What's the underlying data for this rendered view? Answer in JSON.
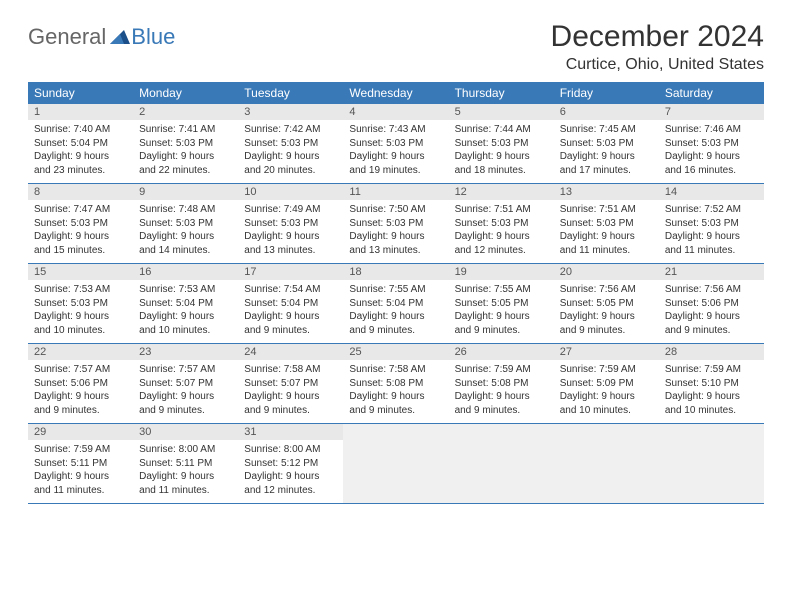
{
  "logo": {
    "part1": "General",
    "part2": "Blue"
  },
  "title": "December 2024",
  "location": "Curtice, Ohio, United States",
  "header_bg": "#3a79b7",
  "daynum_bg": "#e8e8e8",
  "border_color": "#3a79b7",
  "day_names": [
    "Sunday",
    "Monday",
    "Tuesday",
    "Wednesday",
    "Thursday",
    "Friday",
    "Saturday"
  ],
  "weeks": [
    [
      {
        "n": "1",
        "sunrise": "7:40 AM",
        "sunset": "5:04 PM",
        "daylight": "9 hours and 23 minutes."
      },
      {
        "n": "2",
        "sunrise": "7:41 AM",
        "sunset": "5:03 PM",
        "daylight": "9 hours and 22 minutes."
      },
      {
        "n": "3",
        "sunrise": "7:42 AM",
        "sunset": "5:03 PM",
        "daylight": "9 hours and 20 minutes."
      },
      {
        "n": "4",
        "sunrise": "7:43 AM",
        "sunset": "5:03 PM",
        "daylight": "9 hours and 19 minutes."
      },
      {
        "n": "5",
        "sunrise": "7:44 AM",
        "sunset": "5:03 PM",
        "daylight": "9 hours and 18 minutes."
      },
      {
        "n": "6",
        "sunrise": "7:45 AM",
        "sunset": "5:03 PM",
        "daylight": "9 hours and 17 minutes."
      },
      {
        "n": "7",
        "sunrise": "7:46 AM",
        "sunset": "5:03 PM",
        "daylight": "9 hours and 16 minutes."
      }
    ],
    [
      {
        "n": "8",
        "sunrise": "7:47 AM",
        "sunset": "5:03 PM",
        "daylight": "9 hours and 15 minutes."
      },
      {
        "n": "9",
        "sunrise": "7:48 AM",
        "sunset": "5:03 PM",
        "daylight": "9 hours and 14 minutes."
      },
      {
        "n": "10",
        "sunrise": "7:49 AM",
        "sunset": "5:03 PM",
        "daylight": "9 hours and 13 minutes."
      },
      {
        "n": "11",
        "sunrise": "7:50 AM",
        "sunset": "5:03 PM",
        "daylight": "9 hours and 13 minutes."
      },
      {
        "n": "12",
        "sunrise": "7:51 AM",
        "sunset": "5:03 PM",
        "daylight": "9 hours and 12 minutes."
      },
      {
        "n": "13",
        "sunrise": "7:51 AM",
        "sunset": "5:03 PM",
        "daylight": "9 hours and 11 minutes."
      },
      {
        "n": "14",
        "sunrise": "7:52 AM",
        "sunset": "5:03 PM",
        "daylight": "9 hours and 11 minutes."
      }
    ],
    [
      {
        "n": "15",
        "sunrise": "7:53 AM",
        "sunset": "5:03 PM",
        "daylight": "9 hours and 10 minutes."
      },
      {
        "n": "16",
        "sunrise": "7:53 AM",
        "sunset": "5:04 PM",
        "daylight": "9 hours and 10 minutes."
      },
      {
        "n": "17",
        "sunrise": "7:54 AM",
        "sunset": "5:04 PM",
        "daylight": "9 hours and 9 minutes."
      },
      {
        "n": "18",
        "sunrise": "7:55 AM",
        "sunset": "5:04 PM",
        "daylight": "9 hours and 9 minutes."
      },
      {
        "n": "19",
        "sunrise": "7:55 AM",
        "sunset": "5:05 PM",
        "daylight": "9 hours and 9 minutes."
      },
      {
        "n": "20",
        "sunrise": "7:56 AM",
        "sunset": "5:05 PM",
        "daylight": "9 hours and 9 minutes."
      },
      {
        "n": "21",
        "sunrise": "7:56 AM",
        "sunset": "5:06 PM",
        "daylight": "9 hours and 9 minutes."
      }
    ],
    [
      {
        "n": "22",
        "sunrise": "7:57 AM",
        "sunset": "5:06 PM",
        "daylight": "9 hours and 9 minutes."
      },
      {
        "n": "23",
        "sunrise": "7:57 AM",
        "sunset": "5:07 PM",
        "daylight": "9 hours and 9 minutes."
      },
      {
        "n": "24",
        "sunrise": "7:58 AM",
        "sunset": "5:07 PM",
        "daylight": "9 hours and 9 minutes."
      },
      {
        "n": "25",
        "sunrise": "7:58 AM",
        "sunset": "5:08 PM",
        "daylight": "9 hours and 9 minutes."
      },
      {
        "n": "26",
        "sunrise": "7:59 AM",
        "sunset": "5:08 PM",
        "daylight": "9 hours and 9 minutes."
      },
      {
        "n": "27",
        "sunrise": "7:59 AM",
        "sunset": "5:09 PM",
        "daylight": "9 hours and 10 minutes."
      },
      {
        "n": "28",
        "sunrise": "7:59 AM",
        "sunset": "5:10 PM",
        "daylight": "9 hours and 10 minutes."
      }
    ],
    [
      {
        "n": "29",
        "sunrise": "7:59 AM",
        "sunset": "5:11 PM",
        "daylight": "9 hours and 11 minutes."
      },
      {
        "n": "30",
        "sunrise": "8:00 AM",
        "sunset": "5:11 PM",
        "daylight": "9 hours and 11 minutes."
      },
      {
        "n": "31",
        "sunrise": "8:00 AM",
        "sunset": "5:12 PM",
        "daylight": "9 hours and 12 minutes."
      },
      null,
      null,
      null,
      null
    ]
  ],
  "labels": {
    "sunrise_prefix": "Sunrise: ",
    "sunset_prefix": "Sunset: ",
    "daylight_prefix": "Daylight: "
  }
}
